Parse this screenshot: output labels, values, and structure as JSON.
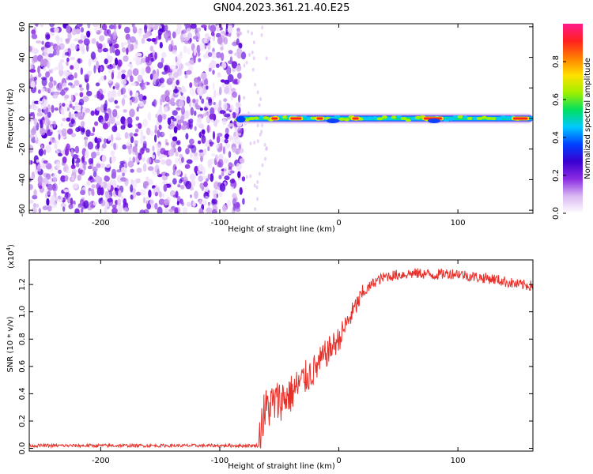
{
  "title": "GN04.2023.361.21.40.E25",
  "colors": {
    "snr_line": "#e8302a",
    "axis": "#000000",
    "colormap": [
      "#ffffff",
      "#d9b8f2",
      "#8a2be2",
      "#3a00d0",
      "#0040ff",
      "#00c8ff",
      "#00e060",
      "#a0f000",
      "#ffe000",
      "#ff8000",
      "#ff2020",
      "#ff1a8c"
    ]
  },
  "chart_data": [
    {
      "type": "heatmap",
      "xlabel": "Height of straight line (km)",
      "ylabel": "Frequency (Hz)",
      "xlim": [
        -260,
        163
      ],
      "ylim": [
        -62,
        62
      ],
      "xticks": [
        -200,
        -100,
        0,
        100
      ],
      "yticks": [
        -60,
        -40,
        -20,
        0,
        20,
        40,
        60
      ],
      "noise_region_x": [
        -260,
        -80
      ],
      "signal": {
        "frequency_hz": 0,
        "x_start": -85,
        "x_end": 163,
        "peak_segments_x": [
          [
            -58,
            -50
          ],
          [
            -42,
            -30
          ],
          [
            -20,
            -12
          ],
          [
            10,
            18
          ],
          [
            70,
            88
          ],
          [
            145,
            160
          ]
        ],
        "gaps_x": [
          -5,
          80
        ]
      },
      "colorbar": {
        "label": "Normalized spectral amplitude",
        "ticks": [
          "0.0",
          "0.2",
          "0.4",
          "0.6",
          "0.8"
        ],
        "range": [
          0,
          1
        ]
      }
    },
    {
      "type": "line",
      "xlabel": "Height of straight line (km)",
      "ylabel": "SNR (10 * v/v)",
      "scale_label": "(x10",
      "scale_exponent": "4",
      "scale_close": ")",
      "xlim": [
        -260,
        163
      ],
      "ylim": [
        -0.02,
        1.38
      ],
      "xticks": [
        -200,
        -100,
        0,
        100
      ],
      "yticks": [
        "0.0",
        "0.2",
        "0.4",
        "0.6",
        "0.8",
        "1.0",
        "1.2"
      ],
      "series": [
        {
          "x": [
            -260,
            -200,
            -150,
            -100,
            -67,
            -65,
            -60,
            -50,
            -40,
            -30,
            -20,
            -10,
            0,
            10,
            20,
            30,
            40,
            50,
            60,
            70,
            80,
            90,
            100,
            110,
            120,
            130,
            140,
            150,
            163
          ],
          "values": [
            0.02,
            0.02,
            0.02,
            0.02,
            0.02,
            0.2,
            0.3,
            0.35,
            0.4,
            0.5,
            0.58,
            0.7,
            0.8,
            0.97,
            1.13,
            1.22,
            1.26,
            1.27,
            1.28,
            1.28,
            1.27,
            1.28,
            1.28,
            1.26,
            1.25,
            1.24,
            1.22,
            1.2,
            1.19
          ]
        }
      ]
    }
  ]
}
